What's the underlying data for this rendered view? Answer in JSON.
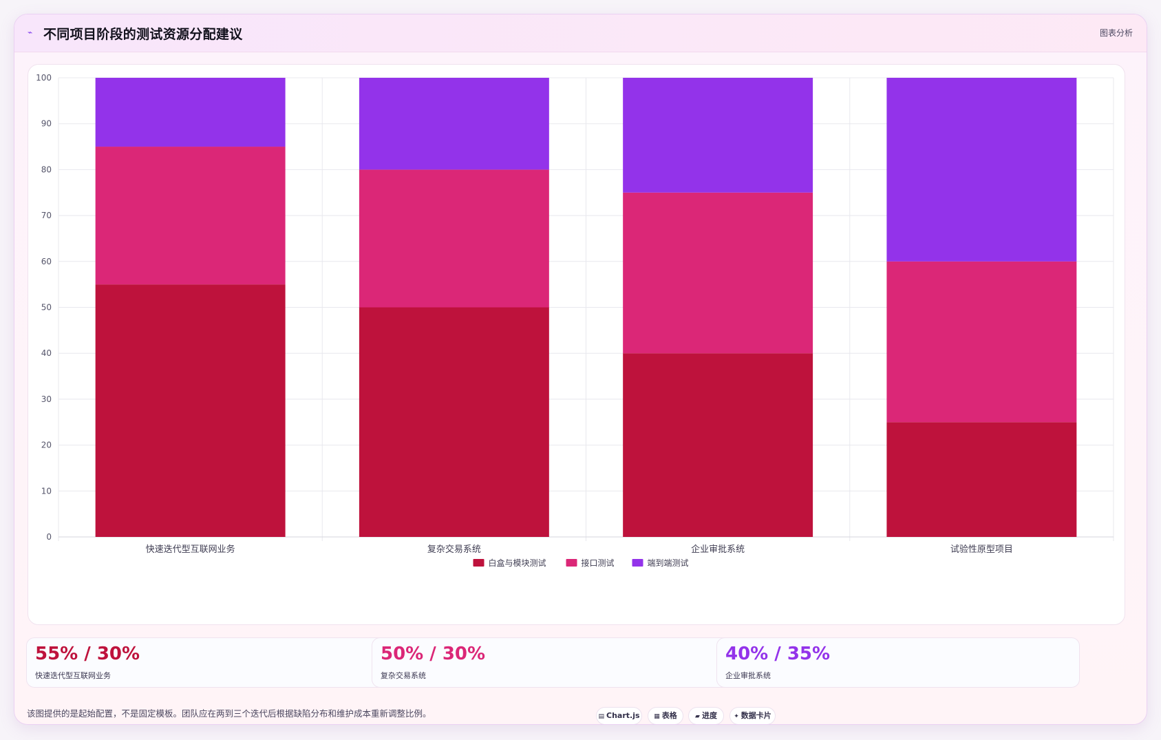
{
  "header": {
    "icon": "trend-icon",
    "title": "不同项目阶段的测试资源分配建议",
    "tag": "图表分析"
  },
  "colors": {
    "white_box": "#be123c",
    "api": "#db2777",
    "e2e": "#9333ea",
    "grid": "#e8e8ee",
    "tick_text": "#55556a"
  },
  "chart_data": {
    "type": "bar",
    "stacked": true,
    "categories": [
      "快速迭代型互联网业务",
      "复杂交易系统",
      "企业审批系统",
      "试验性原型项目"
    ],
    "series": [
      {
        "name": "白盒与模块测试",
        "color": "#be123c",
        "values": [
          55,
          50,
          40,
          25
        ]
      },
      {
        "name": "接口测试",
        "color": "#db2777",
        "values": [
          30,
          30,
          35,
          35
        ]
      },
      {
        "name": "端到端测试",
        "color": "#9333ea",
        "values": [
          15,
          20,
          25,
          40
        ]
      }
    ],
    "ylim": [
      0,
      100
    ],
    "yticks": [
      0,
      10,
      20,
      30,
      40,
      50,
      60,
      70,
      80,
      90,
      100
    ],
    "grid": true,
    "legend": "bottom"
  },
  "stats": [
    {
      "value": "55% / 30%",
      "label": "快速迭代型互联网业务",
      "color": "#be123c"
    },
    {
      "value": "50% / 30%",
      "label": "复杂交易系统",
      "color": "#db2777"
    },
    {
      "value": "40% / 35%",
      "label": "企业审批系统",
      "color": "#9333ea"
    }
  ],
  "footer": {
    "note": "该图提供的是起始配置，不是固定模板。团队应在两到三个迭代后根据缺陷分布和维护成本重新调整比例。",
    "pills": [
      {
        "icon": "▤",
        "label": "Chart.js"
      },
      {
        "icon": "▦",
        "label": "表格"
      },
      {
        "icon": "▰",
        "label": "进度"
      },
      {
        "icon": "✦",
        "label": "数据卡片"
      }
    ]
  }
}
